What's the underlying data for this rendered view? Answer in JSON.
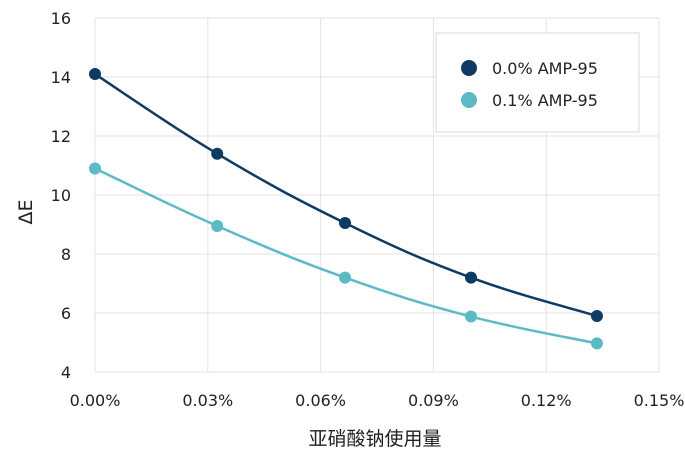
{
  "chart_data": {
    "type": "line",
    "xlabel": "亚硝酸钠使用量",
    "ylabel": "ΔE",
    "x_ticks": [
      "0.00%",
      "0.03%",
      "0.06%",
      "0.09%",
      "0.12%",
      "0.15%"
    ],
    "y_ticks": [
      "4",
      "6",
      "8",
      "10",
      "12",
      "14",
      "16"
    ],
    "xlim": [
      0.0,
      0.15
    ],
    "ylim": [
      4,
      16
    ],
    "grid": true,
    "legend_position": "top-right",
    "x": [
      0.0,
      0.0325,
      0.0665,
      0.1,
      0.1335
    ],
    "series": [
      {
        "name": "0.0% AMP-95",
        "color": "#0f3a62",
        "values": [
          14.1,
          11.4,
          9.05,
          7.2,
          5.9
        ]
      },
      {
        "name": "0.1% AMP-95",
        "color": "#5bbac4",
        "values": [
          10.9,
          8.95,
          7.2,
          5.88,
          4.97
        ]
      }
    ]
  }
}
